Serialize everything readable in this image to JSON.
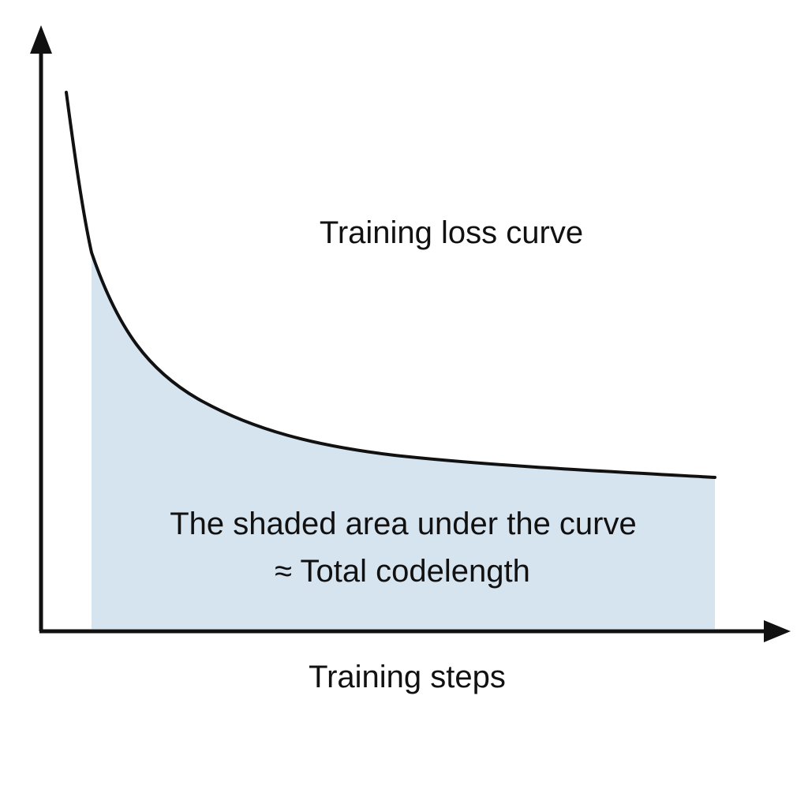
{
  "diagram": {
    "curve_label": "Training loss curve",
    "area_caption_line1": "The shaded area under the curve",
    "area_caption_line2": "≈ Total codelength",
    "x_axis_label": "Training steps",
    "colors": {
      "shaded_area": "#d6e4f0",
      "curve": "#111111",
      "axes": "#111111",
      "text": "#111111"
    }
  }
}
